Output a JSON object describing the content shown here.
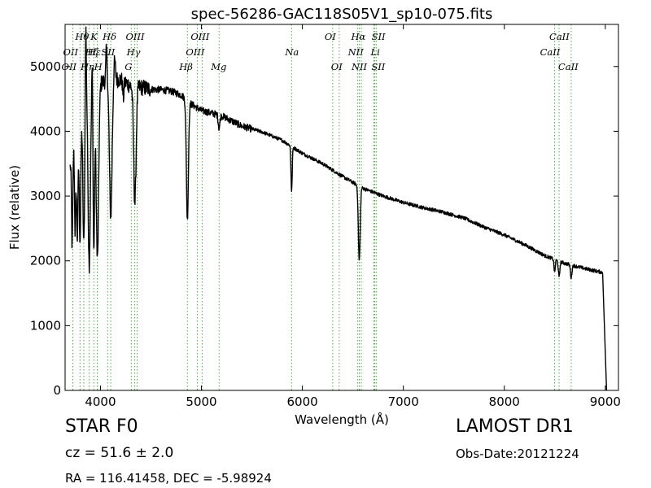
{
  "chart_data": {
    "type": "line",
    "title": "spec-56286-GAC118S05V1_sp10-075.fits",
    "xlabel": "Wavelength (Å)",
    "ylabel": "Flux (relative)",
    "xlim": [
      3650,
      9130
    ],
    "ylim": [
      0,
      5650
    ],
    "xticks": [
      4000,
      5000,
      6000,
      7000,
      8000,
      9000
    ],
    "yticks": [
      0,
      1000,
      2000,
      3000,
      4000,
      5000
    ],
    "grid": false,
    "series": [
      {
        "color": "#000000",
        "continuum": [
          [
            3700,
            3450
          ],
          [
            3750,
            3900
          ],
          [
            3800,
            4250
          ],
          [
            3850,
            4550
          ],
          [
            3900,
            4600
          ],
          [
            3950,
            4700
          ],
          [
            4000,
            4750
          ],
          [
            4100,
            4800
          ],
          [
            4200,
            4800
          ],
          [
            4300,
            4700
          ],
          [
            4400,
            4680
          ],
          [
            4500,
            4650
          ],
          [
            4600,
            4640
          ],
          [
            4700,
            4620
          ],
          [
            4800,
            4560
          ],
          [
            4900,
            4420
          ],
          [
            5000,
            4320
          ],
          [
            5200,
            4240
          ],
          [
            5400,
            4080
          ],
          [
            5600,
            3990
          ],
          [
            5800,
            3860
          ],
          [
            6000,
            3660
          ],
          [
            6200,
            3500
          ],
          [
            6400,
            3300
          ],
          [
            6600,
            3120
          ],
          [
            6800,
            3000
          ],
          [
            7000,
            2900
          ],
          [
            7200,
            2820
          ],
          [
            7400,
            2750
          ],
          [
            7600,
            2660
          ],
          [
            7800,
            2520
          ],
          [
            8000,
            2400
          ],
          [
            8200,
            2250
          ],
          [
            8400,
            2080
          ],
          [
            8600,
            1960
          ],
          [
            8800,
            1880
          ],
          [
            8975,
            1820
          ]
        ],
        "absorption": [
          [
            3720,
            1400,
            6
          ],
          [
            3750,
            1500,
            6
          ],
          [
            3771,
            1700,
            7
          ],
          [
            3798,
            1900,
            8
          ],
          [
            3835,
            2200,
            9
          ],
          [
            3889,
            2650,
            11
          ],
          [
            3934,
            2500,
            8
          ],
          [
            3970,
            2700,
            12
          ],
          [
            4102,
            2100,
            13
          ],
          [
            4227,
            250,
            6
          ],
          [
            4341,
            1800,
            12
          ],
          [
            4861,
            1850,
            10
          ],
          [
            5175,
            200,
            8
          ],
          [
            5893,
            700,
            6
          ],
          [
            6563,
            1150,
            9
          ],
          [
            8498,
            200,
            6
          ],
          [
            8542,
            250,
            7
          ],
          [
            8662,
            200,
            7
          ]
        ],
        "emission": [
          [
            3855,
            1200,
            5
          ],
          [
            3920,
            800,
            5
          ],
          [
            4060,
            500,
            6
          ],
          [
            4140,
            300,
            8
          ]
        ],
        "cutoff": [
          8975,
          9012
        ]
      }
    ]
  },
  "lines": {
    "color": "#4daf4a",
    "items": [
      {
        "wl": 3727,
        "label": "OII",
        "row": 1,
        "dx": -12
      },
      {
        "wl": 3727,
        "label": "OII",
        "row": 2,
        "dx": -14
      },
      {
        "wl": 3798,
        "label": "Hθ",
        "row": 0,
        "dx": -6
      },
      {
        "wl": 3835,
        "label": "Hη",
        "row": 2,
        "dx": -4
      },
      {
        "wl": 3889,
        "label": "Hζ",
        "row": 1,
        "dx": -5
      },
      {
        "wl": 3934,
        "label": "K",
        "row": 0,
        "dx": -4
      },
      {
        "wl": 3969,
        "label": "H",
        "row": 2,
        "dx": -4
      },
      {
        "wl": 3970,
        "label": "Hε",
        "row": 1,
        "dx": -12
      },
      {
        "wl": 4072,
        "label": "SII",
        "row": 1,
        "dx": -8
      },
      {
        "wl": 4102,
        "label": "Hδ",
        "row": 0,
        "dx": -10
      },
      {
        "wl": 4305,
        "label": "G",
        "row": 2,
        "dx": -8
      },
      {
        "wl": 4340,
        "label": "Hγ",
        "row": 1,
        "dx": -10
      },
      {
        "wl": 4363,
        "label": "OIII",
        "row": 0,
        "dx": -14
      },
      {
        "wl": 4861,
        "label": "Hβ",
        "row": 2,
        "dx": -10
      },
      {
        "wl": 4959,
        "label": "OIII",
        "row": 1,
        "dx": -14
      },
      {
        "wl": 5007,
        "label": "OIII",
        "row": 0,
        "dx": -14
      },
      {
        "wl": 5175,
        "label": "Mg",
        "row": 2,
        "dx": -10
      },
      {
        "wl": 5893,
        "label": "Na",
        "row": 1,
        "dx": -8
      },
      {
        "wl": 6300,
        "label": "OI",
        "row": 0,
        "dx": -10
      },
      {
        "wl": 6364,
        "label": "OI",
        "row": 2,
        "dx": -10
      },
      {
        "wl": 6548,
        "label": "NII",
        "row": 1,
        "dx": -12
      },
      {
        "wl": 6563,
        "label": "Hα",
        "row": 0,
        "dx": -10
      },
      {
        "wl": 6583,
        "label": "NII",
        "row": 2,
        "dx": -12
      },
      {
        "wl": 6708,
        "label": "Li",
        "row": 1,
        "dx": -4
      },
      {
        "wl": 6717,
        "label": "SII",
        "row": 0,
        "dx": -4
      },
      {
        "wl": 6731,
        "label": "SII",
        "row": 2,
        "dx": -6
      },
      {
        "wl": 8498,
        "label": "CaII",
        "row": 1,
        "dx": -18
      },
      {
        "wl": 8542,
        "label": "CaII",
        "row": 0,
        "dx": -12
      },
      {
        "wl": 8662,
        "label": "CaII",
        "row": 2,
        "dx": -16
      }
    ]
  },
  "info": {
    "class_label": "STAR   F0",
    "cz": "cz = 51.6  ± 2.0",
    "radec": "RA = 116.41458, DEC = -5.98924",
    "survey": "LAMOST DR1",
    "obs_date": "Obs-Date:20121224"
  }
}
